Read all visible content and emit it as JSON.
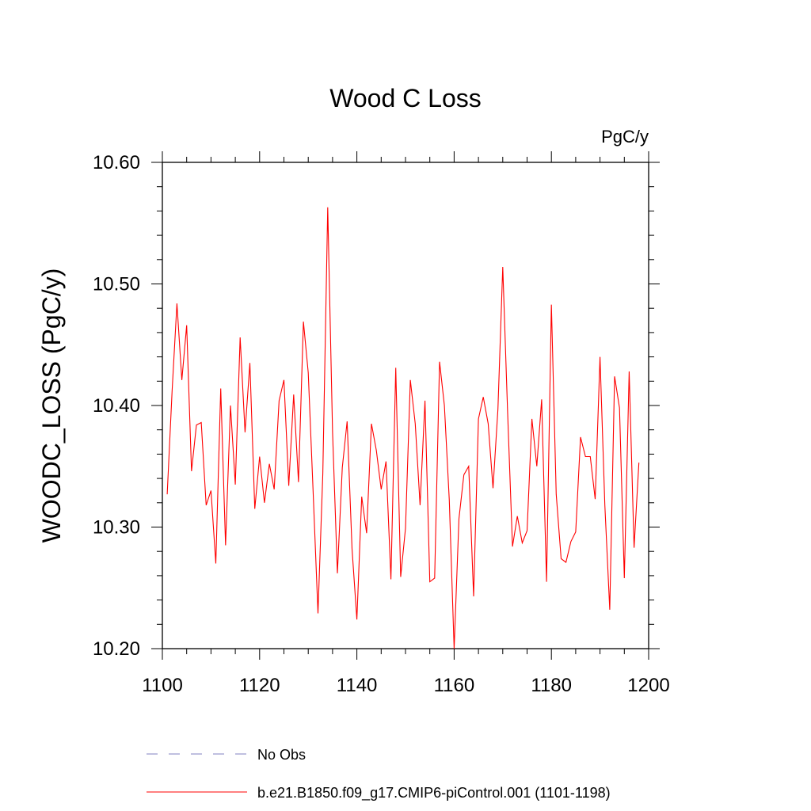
{
  "chart_data": {
    "type": "line",
    "title": "Wood C Loss",
    "units": "PgC/y",
    "xlabel": "",
    "ylabel": "WOODC_LOSS  (PgC/y)",
    "xlim": [
      1100,
      1200
    ],
    "ylim": [
      10.2,
      10.6
    ],
    "xticks": [
      1100,
      1120,
      1140,
      1160,
      1180,
      1200
    ],
    "xtick_labels": [
      "1100",
      "1120",
      "1140",
      "1160",
      "1180",
      "1200"
    ],
    "yticks": [
      10.2,
      10.3,
      10.4,
      10.5,
      10.6
    ],
    "ytick_labels": [
      "10.20",
      "10.30",
      "10.40",
      "10.50",
      "10.60"
    ],
    "grid": false,
    "legend_position": "bottom",
    "series": [
      {
        "name": "No Obs",
        "color": "#8080c0",
        "dash": "dashed",
        "x": [],
        "y": []
      },
      {
        "name": "b.e21.B1850.f09_g17.CMIP6-piControl.001 (1101-1198)",
        "color": "#ff0000",
        "dash": "solid",
        "x": [
          1101,
          1102,
          1103,
          1104,
          1105,
          1106,
          1107,
          1108,
          1109,
          1110,
          1111,
          1112,
          1113,
          1114,
          1115,
          1116,
          1117,
          1118,
          1119,
          1120,
          1121,
          1122,
          1123,
          1124,
          1125,
          1126,
          1127,
          1128,
          1129,
          1130,
          1131,
          1132,
          1133,
          1134,
          1135,
          1136,
          1137,
          1138,
          1139,
          1140,
          1141,
          1142,
          1143,
          1144,
          1145,
          1146,
          1147,
          1148,
          1149,
          1150,
          1151,
          1152,
          1153,
          1154,
          1155,
          1156,
          1157,
          1158,
          1159,
          1160,
          1161,
          1162,
          1163,
          1164,
          1165,
          1166,
          1167,
          1168,
          1169,
          1170,
          1171,
          1172,
          1173,
          1174,
          1175,
          1176,
          1177,
          1178,
          1179,
          1180,
          1181,
          1182,
          1183,
          1184,
          1185,
          1186,
          1187,
          1188,
          1189,
          1190,
          1191,
          1192,
          1193,
          1194,
          1195,
          1196,
          1197,
          1198
        ],
        "y": [
          10.327,
          10.412,
          10.484,
          10.421,
          10.466,
          10.346,
          10.384,
          10.386,
          10.318,
          10.33,
          10.27,
          10.414,
          10.285,
          10.4,
          10.335,
          10.456,
          10.378,
          10.435,
          10.315,
          10.358,
          10.32,
          10.352,
          10.331,
          10.404,
          10.421,
          10.334,
          10.409,
          10.337,
          10.469,
          10.427,
          10.33,
          10.229,
          10.344,
          10.563,
          10.378,
          10.262,
          10.349,
          10.387,
          10.282,
          10.224,
          10.325,
          10.295,
          10.385,
          10.363,
          10.331,
          10.354,
          10.257,
          10.431,
          10.259,
          10.299,
          10.421,
          10.385,
          10.318,
          10.404,
          10.255,
          10.258,
          10.436,
          10.4,
          10.322,
          10.2,
          10.307,
          10.343,
          10.35,
          10.243,
          10.389,
          10.407,
          10.385,
          10.332,
          10.397,
          10.514,
          10.395,
          10.284,
          10.309,
          10.287,
          10.297,
          10.389,
          10.35,
          10.405,
          10.255,
          10.483,
          10.327,
          10.274,
          10.271,
          10.288,
          10.296,
          10.374,
          10.358,
          10.358,
          10.323,
          10.44,
          10.318,
          10.232,
          10.424,
          10.398,
          10.258,
          10.428,
          10.283,
          10.353
        ]
      }
    ]
  }
}
